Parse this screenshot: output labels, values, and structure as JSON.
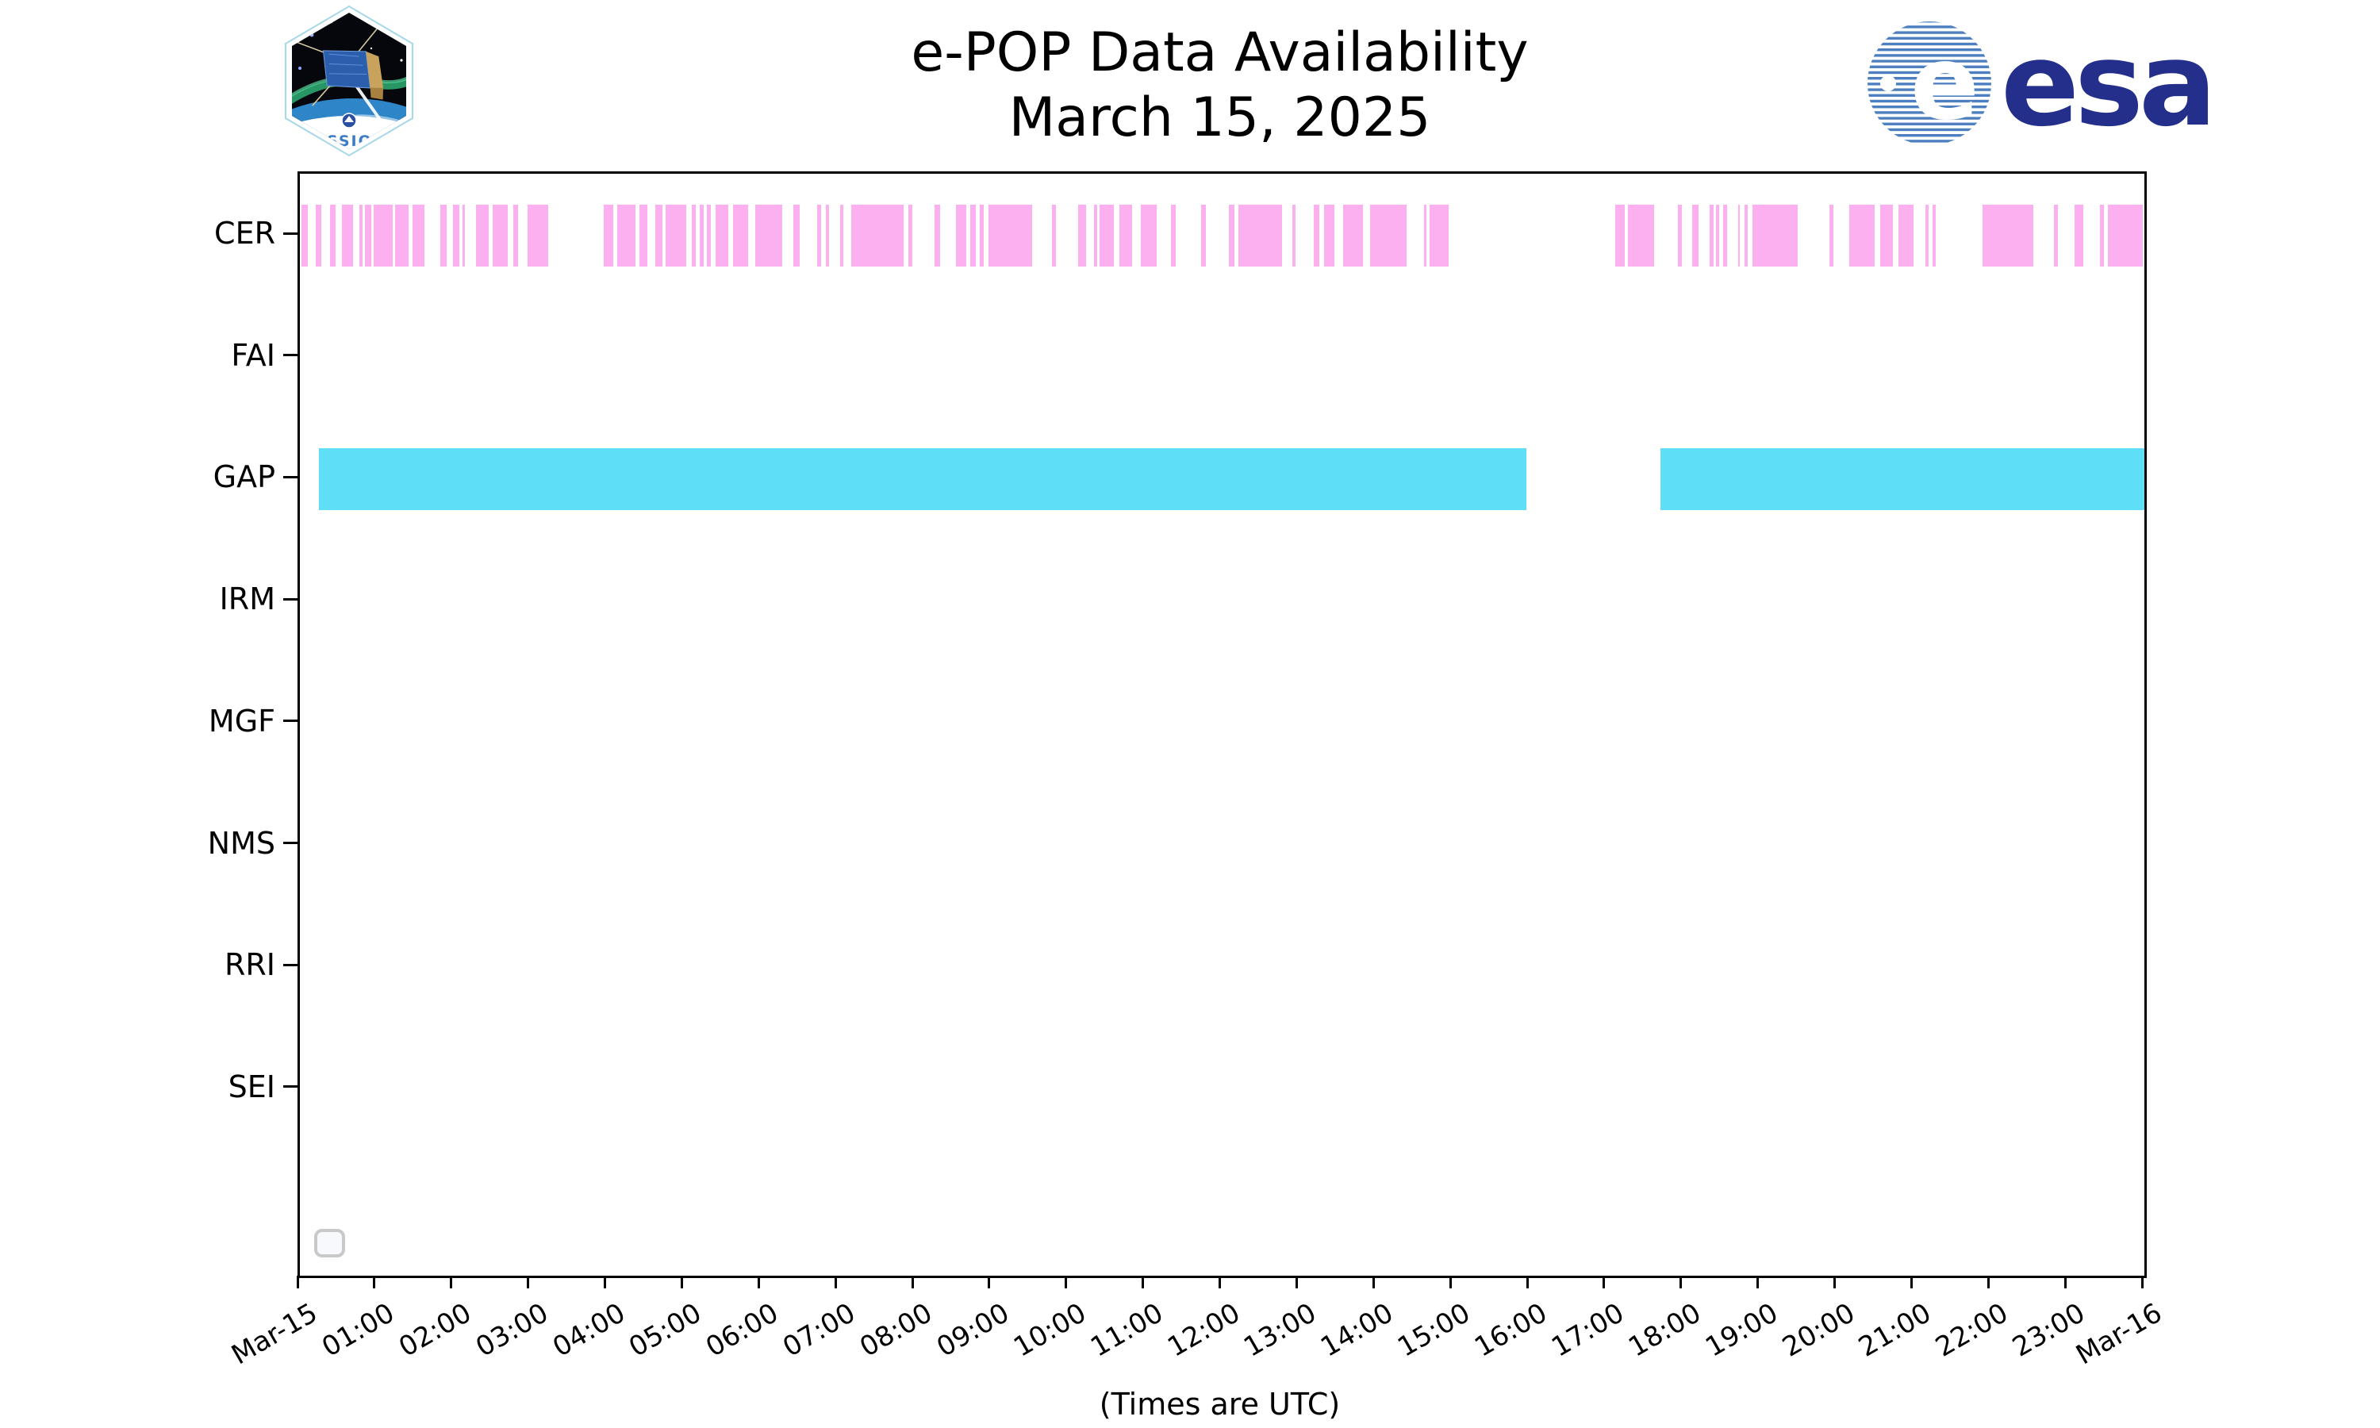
{
  "header": {
    "title_line1": "e-POP Data Availability",
    "title_line2": "March 15, 2025",
    "cassiope_patch_text": "CASSIOPE",
    "esa_e": "e",
    "esa_text": "esa"
  },
  "footer": {
    "caption": "(Times are UTC)"
  },
  "colors": {
    "cer_pink": "#fcb0ef",
    "gap_cyan": "#5edff7",
    "spine_black": "#000000",
    "esa_navy": "#242f8c",
    "esa_stripe_blue": "#4d7fc0",
    "cassiope_blue": "#3b7cc4",
    "legend_border_gray": "#c9c9c9"
  },
  "chart_data": {
    "type": "bar",
    "subtype": "horizontal-availability-intervals",
    "title": "e-POP Data Availability",
    "subtitle": "March 15, 2025",
    "xlabel": "(Times are UTC)",
    "ylabel": "",
    "grid": false,
    "legend": {
      "present": true,
      "empty": true,
      "position": "lower left"
    },
    "x_axis": {
      "units": "hours UTC on 2025-03-15",
      "range_hours": [
        0,
        24
      ],
      "tick_labels": [
        "Mar-15",
        "01:00",
        "02:00",
        "03:00",
        "04:00",
        "05:00",
        "06:00",
        "07:00",
        "08:00",
        "09:00",
        "10:00",
        "11:00",
        "12:00",
        "13:00",
        "14:00",
        "15:00",
        "16:00",
        "17:00",
        "18:00",
        "19:00",
        "20:00",
        "21:00",
        "22:00",
        "23:00",
        "Mar-16"
      ],
      "tick_label_rotation_deg": 30
    },
    "rows": [
      {
        "label": "CER",
        "color": "#fcb0ef",
        "intervals": [
          [
            0.02,
            0.1
          ],
          [
            0.21,
            0.28
          ],
          [
            0.39,
            0.46
          ],
          [
            0.55,
            0.69
          ],
          [
            0.77,
            0.82
          ],
          [
            0.85,
            0.93
          ],
          [
            0.96,
            1.21
          ],
          [
            1.24,
            1.41
          ],
          [
            1.47,
            1.62
          ],
          [
            1.83,
            1.91
          ],
          [
            1.99,
            2.07
          ],
          [
            2.12,
            2.15
          ],
          [
            2.29,
            2.46
          ],
          [
            2.51,
            2.7
          ],
          [
            2.78,
            2.84
          ],
          [
            2.96,
            3.23
          ],
          [
            3.95,
            4.08
          ],
          [
            4.13,
            4.37
          ],
          [
            4.42,
            4.52
          ],
          [
            4.62,
            4.72
          ],
          [
            4.76,
            5.03
          ],
          [
            5.1,
            5.15
          ],
          [
            5.2,
            5.25
          ],
          [
            5.3,
            5.35
          ],
          [
            5.41,
            5.57
          ],
          [
            5.64,
            5.83
          ],
          [
            5.92,
            6.28
          ],
          [
            6.42,
            6.5
          ],
          [
            6.73,
            6.78
          ],
          [
            6.84,
            6.88
          ],
          [
            7.03,
            7.07
          ],
          [
            7.17,
            7.86
          ],
          [
            7.92,
            7.97
          ],
          [
            8.26,
            8.33
          ],
          [
            8.54,
            8.67
          ],
          [
            8.72,
            8.79
          ],
          [
            8.85,
            8.9
          ],
          [
            8.96,
            9.53
          ],
          [
            9.79,
            9.84
          ],
          [
            10.13,
            10.23
          ],
          [
            10.33,
            10.37
          ],
          [
            10.41,
            10.59
          ],
          [
            10.66,
            10.83
          ],
          [
            10.94,
            11.15
          ],
          [
            11.33,
            11.4
          ],
          [
            11.73,
            11.79
          ],
          [
            12.09,
            12.16
          ],
          [
            12.21,
            12.78
          ],
          [
            12.91,
            12.95
          ],
          [
            13.19,
            13.26
          ],
          [
            13.33,
            13.46
          ],
          [
            13.57,
            13.83
          ],
          [
            13.93,
            14.4
          ],
          [
            14.63,
            14.66
          ],
          [
            14.7,
            14.95
          ],
          [
            17.11,
            17.24
          ],
          [
            17.28,
            17.62
          ],
          [
            17.93,
            17.98
          ],
          [
            18.12,
            18.2
          ],
          [
            18.34,
            18.39
          ],
          [
            18.43,
            18.47
          ],
          [
            18.52,
            18.57
          ],
          [
            18.71,
            18.74
          ],
          [
            18.8,
            18.84
          ],
          [
            18.9,
            19.49
          ],
          [
            19.9,
            19.95
          ],
          [
            20.16,
            20.49
          ],
          [
            20.56,
            20.73
          ],
          [
            20.8,
            21.0
          ],
          [
            21.15,
            21.19
          ],
          [
            21.24,
            21.29
          ],
          [
            21.89,
            22.55
          ],
          [
            22.82,
            22.87
          ],
          [
            23.09,
            23.2
          ],
          [
            23.42,
            23.47
          ],
          [
            23.52,
            23.98
          ]
        ]
      },
      {
        "label": "FAI",
        "color": "#fcb0ef",
        "intervals": []
      },
      {
        "label": "GAP",
        "color": "#5edff7",
        "intervals": [
          [
            0.25,
            15.96
          ],
          [
            17.7,
            24.0
          ]
        ]
      },
      {
        "label": "IRM",
        "color": "#fcb0ef",
        "intervals": []
      },
      {
        "label": "MGF",
        "color": "#fcb0ef",
        "intervals": []
      },
      {
        "label": "NMS",
        "color": "#fcb0ef",
        "intervals": []
      },
      {
        "label": "RRI",
        "color": "#fcb0ef",
        "intervals": []
      },
      {
        "label": "SEI",
        "color": "#fcb0ef",
        "intervals": []
      }
    ]
  }
}
